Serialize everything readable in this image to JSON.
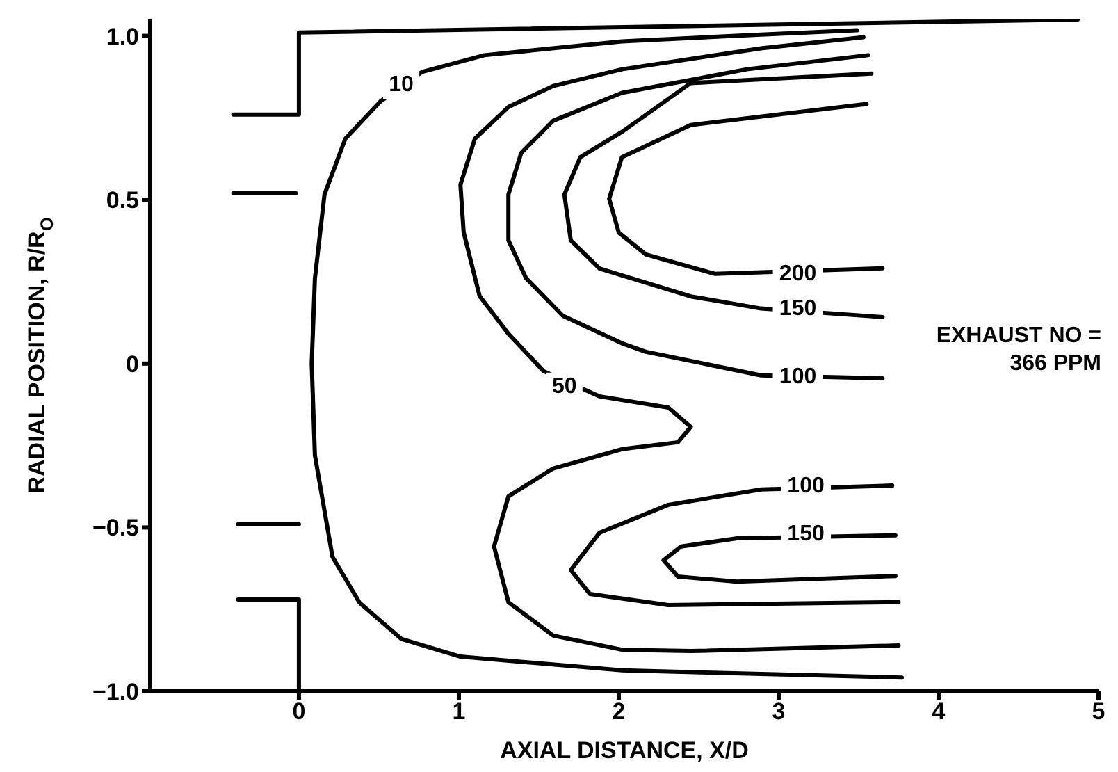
{
  "chart_data": {
    "type": "line",
    "xlabel": "AXIAL DISTANCE, X/D",
    "ylabel": "RADIAL POSITION, R/R$_{O}$",
    "xlim": [
      -0.93,
      5
    ],
    "xticks": [
      0,
      1,
      2,
      3,
      4,
      5
    ],
    "ylim": [
      -1.0,
      1.05
    ],
    "yticks": [
      {
        "value": 1.0,
        "label": "1.0"
      },
      {
        "value": 0.5,
        "label": "0.5"
      },
      {
        "value": 0,
        "label": "0"
      },
      {
        "value": -0.5,
        "label": "−0.5"
      },
      {
        "value": -1.0,
        "label": "−1.0"
      }
    ],
    "marker": "none",
    "line_style": "solid",
    "series": [
      {
        "color": "#000000",
        "x": [
          -0.41,
          0,
          0,
          4.87,
          null,
          -0.41,
          -0.02,
          null,
          -0.38,
          0,
          null,
          -0.38,
          0,
          0
        ],
        "values": [
          0.76,
          0.76,
          1.01,
          1.05,
          null,
          0.52,
          0.52,
          null,
          -0.49,
          -0.49,
          null,
          -0.72,
          -0.72,
          -1.0
        ]
      },
      {
        "color": "#000000",
        "x": [
          3.49,
          2.89,
          2.02,
          1.16,
          0.77,
          0.51,
          0.29,
          0.16,
          0.1,
          0.08,
          0.1,
          0.21,
          0.38,
          0.64,
          1.01,
          2.02,
          3.77
        ],
        "values": [
          1.017,
          1.004,
          0.983,
          0.941,
          0.89,
          0.8,
          0.686,
          0.516,
          0.26,
          0,
          -0.28,
          -0.59,
          -0.73,
          -0.84,
          -0.894,
          -0.936,
          -0.958
        ]
      },
      {
        "color": "#000000",
        "x": [
          3.53,
          2.89,
          2.02,
          1.59,
          1.31,
          1.1,
          1.01,
          1.03,
          1.13,
          1.31,
          1.53,
          1.88,
          2.31,
          2.45,
          2.37,
          2.02,
          1.59,
          1.31,
          1.22,
          1.31,
          1.59,
          2.02,
          2.45,
          3.75
        ],
        "values": [
          0.996,
          0.962,
          0.898,
          0.847,
          0.783,
          0.686,
          0.546,
          0.401,
          0.206,
          0.091,
          -0.023,
          -0.1,
          -0.134,
          -0.193,
          -0.24,
          -0.261,
          -0.32,
          -0.405,
          -0.558,
          -0.728,
          -0.83,
          -0.873,
          -0.877,
          -0.86
        ]
      },
      {
        "color": "#000000",
        "x": [
          3.56,
          2.8,
          2.02,
          1.59,
          1.39,
          1.31,
          1.31,
          1.42,
          1.65,
          2.02,
          2.17,
          2.89,
          3.65
        ],
        "values": [
          0.941,
          0.898,
          0.826,
          0.741,
          0.643,
          0.516,
          0.376,
          0.261,
          0.146,
          0.062,
          0.036,
          -0.036,
          -0.045
        ]
      },
      {
        "color": "#000000",
        "x": [
          3.58,
          2.45,
          2.02,
          1.76,
          1.66,
          1.7,
          1.88,
          2.45,
          2.89,
          3.65
        ],
        "values": [
          0.885,
          0.856,
          0.707,
          0.63,
          0.516,
          0.376,
          0.29,
          0.205,
          0.168,
          0.142
        ]
      },
      {
        "color": "#000000",
        "x": [
          3.55,
          2.45,
          2.02,
          1.94,
          2.0,
          2.17,
          2.6,
          3.65
        ],
        "values": [
          0.792,
          0.728,
          0.63,
          0.503,
          0.4,
          0.333,
          0.274,
          0.291
        ]
      },
      {
        "color": "#000000",
        "x": [
          3.71,
          2.89,
          2.31,
          1.88,
          1.7,
          1.82,
          2.31,
          3.75
        ],
        "values": [
          -0.372,
          -0.384,
          -0.431,
          -0.516,
          -0.63,
          -0.703,
          -0.737,
          -0.728
        ]
      },
      {
        "color": "#000000",
        "x": [
          3.73,
          2.74,
          2.39,
          2.28,
          2.37,
          2.74,
          3.73
        ],
        "values": [
          -0.524,
          -0.533,
          -0.558,
          -0.6,
          -0.65,
          -0.665,
          -0.648
        ]
      }
    ],
    "annotations": [
      {
        "text": "10",
        "x": 0.64,
        "y": 0.85
      },
      {
        "text": "50",
        "x": 1.66,
        "y": -0.07
      },
      {
        "text": "200",
        "x": 3.12,
        "y": 0.274
      },
      {
        "text": "150",
        "x": 3.12,
        "y": 0.168
      },
      {
        "text": "100",
        "x": 3.12,
        "y": -0.04
      },
      {
        "text": "100",
        "x": 3.17,
        "y": -0.375
      },
      {
        "text": "150",
        "x": 3.17,
        "y": -0.52
      },
      "EXHAUST NO =\n366 PPM"
    ]
  }
}
